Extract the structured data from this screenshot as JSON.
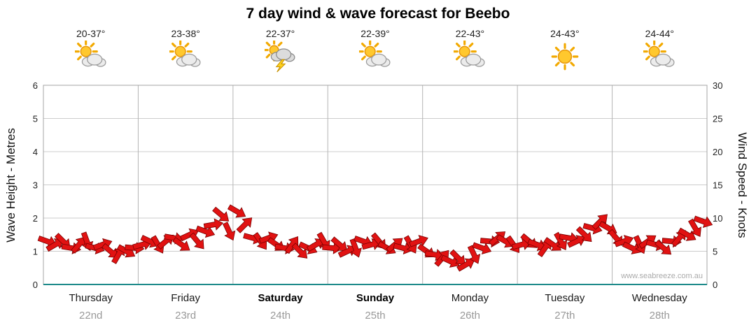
{
  "title": "7 day wind & wave forecast for Beebo",
  "watermark": "www.seabreeze.com.au",
  "days": [
    {
      "temp": "20-37°",
      "icon": "sun-cloud",
      "day": "Thursday",
      "date": "22nd",
      "weekend": false
    },
    {
      "temp": "23-38°",
      "icon": "sun-cloud",
      "day": "Friday",
      "date": "23rd",
      "weekend": false
    },
    {
      "temp": "22-37°",
      "icon": "storm",
      "day": "Saturday",
      "date": "24th",
      "weekend": true
    },
    {
      "temp": "22-39°",
      "icon": "sun-cloud",
      "day": "Sunday",
      "date": "25th",
      "weekend": true
    },
    {
      "temp": "22-43°",
      "icon": "sun-cloud",
      "day": "Monday",
      "date": "26th",
      "weekend": false
    },
    {
      "temp": "24-43°",
      "icon": "sun",
      "day": "Tuesday",
      "date": "27th",
      "weekend": false
    },
    {
      "temp": "24-44°",
      "icon": "sun-cloud",
      "day": "Wednesday",
      "date": "28th",
      "weekend": false
    }
  ],
  "left_axis": {
    "label": "Wave Height - Metres",
    "ticks": [
      0,
      1,
      2,
      3,
      4,
      5,
      6
    ],
    "range": [
      0,
      6
    ]
  },
  "right_axis": {
    "label": "Wind Speed - Knots",
    "ticks": [
      0,
      5,
      10,
      15,
      20,
      25,
      30
    ],
    "range": [
      0,
      30
    ]
  },
  "chart_data": {
    "type": "scatter",
    "marker": "arrow",
    "title": "7 day wind & wave forecast for Beebo",
    "categories": [
      "Thursday 22nd",
      "Friday 23rd",
      "Saturday 24th",
      "Sunday 25th",
      "Monday 26th",
      "Tuesday 27th",
      "Wednesday 28th"
    ],
    "points_per_day": 12,
    "grid": true,
    "arrow_color": "#e11212",
    "arrow_outline": "#7a0000",
    "baseline_color": "#1d8a8a",
    "left_axis_range": [
      0,
      6
    ],
    "right_axis_range": [
      0,
      30
    ],
    "series": [
      {
        "name": "Wind Speed",
        "units": "knots",
        "values": [
          6.5,
          6.0,
          6.5,
          5.5,
          6.0,
          6.5,
          5.5,
          6.0,
          5.0,
          4.5,
          5.0,
          5.5,
          6.0,
          6.5,
          6.0,
          6.5,
          7.0,
          6.0,
          7.5,
          6.5,
          8.0,
          9.0,
          10.5,
          8.0,
          11.0,
          9.0,
          7.0,
          6.5,
          7.0,
          6.0,
          5.5,
          6.0,
          5.0,
          5.5,
          6.0,
          6.5,
          5.5,
          6.0,
          5.0,
          5.5,
          6.5,
          6.0,
          6.5,
          5.5,
          6.0,
          5.5,
          6.0,
          6.5,
          5.0,
          4.5,
          4.0,
          3.5,
          4.0,
          3.0,
          4.5,
          5.5,
          6.5,
          7.0,
          6.5,
          6.0,
          6.0,
          6.5,
          6.0,
          5.5,
          6.0,
          6.5,
          7.0,
          6.5,
          7.5,
          8.5,
          9.5,
          8.5,
          7.0,
          6.5,
          5.5,
          6.0,
          6.5,
          6.0,
          5.5,
          6.5,
          7.0,
          7.5,
          8.5,
          9.5
        ],
        "directions_deg": [
          20,
          -30,
          45,
          10,
          -50,
          70,
          15,
          -20,
          40,
          -60,
          30,
          5,
          -15,
          25,
          60,
          -40,
          10,
          35,
          -25,
          50,
          20,
          -10,
          40,
          65,
          30,
          -45,
          15,
          55,
          -20,
          35,
          10,
          -55,
          45,
          25,
          -30,
          60,
          5,
          40,
          -25,
          70,
          20,
          -15,
          50,
          30,
          -40,
          15,
          60,
          -20,
          35,
          10,
          -50,
          25,
          45,
          -30,
          65,
          20,
          5,
          -40,
          30,
          55,
          -15,
          40,
          20,
          -55,
          35,
          60,
          10,
          -25,
          45,
          15,
          -45,
          30,
          50,
          -20,
          25,
          65,
          -35,
          15,
          40,
          5,
          -50,
          30,
          60,
          20
        ]
      }
    ]
  }
}
